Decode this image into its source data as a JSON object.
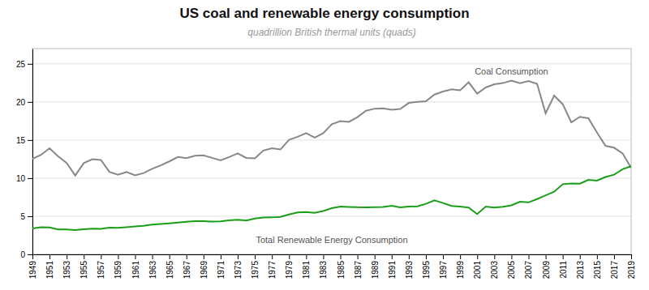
{
  "chart_data": {
    "type": "line",
    "title": "US coal and renewable energy consumption",
    "subtitle": "quadrillion British thermal units (quads)",
    "x": [
      1949,
      1950,
      1951,
      1952,
      1953,
      1954,
      1955,
      1956,
      1957,
      1958,
      1959,
      1960,
      1961,
      1962,
      1963,
      1964,
      1965,
      1966,
      1967,
      1968,
      1969,
      1970,
      1971,
      1972,
      1973,
      1974,
      1975,
      1976,
      1977,
      1978,
      1979,
      1980,
      1981,
      1982,
      1983,
      1984,
      1985,
      1986,
      1987,
      1988,
      1989,
      1990,
      1991,
      1992,
      1993,
      1994,
      1995,
      1996,
      1997,
      1998,
      1999,
      2000,
      2001,
      2002,
      2003,
      2004,
      2005,
      2006,
      2007,
      2008,
      2009,
      2010,
      2011,
      2012,
      2013,
      2014,
      2015,
      2016,
      2017,
      2018,
      2019
    ],
    "series": [
      {
        "name": "Coal Consumption",
        "color": "#888888",
        "values": [
          12.53,
          13.05,
          13.93,
          12.87,
          11.98,
          10.35,
          11.97,
          12.49,
          12.39,
          10.83,
          10.44,
          10.82,
          10.37,
          10.67,
          11.23,
          11.68,
          12.2,
          12.77,
          12.63,
          12.95,
          12.99,
          12.66,
          12.34,
          12.77,
          13.25,
          12.66,
          12.59,
          13.63,
          13.93,
          13.76,
          15.04,
          15.42,
          15.91,
          15.32,
          15.89,
          17.07,
          17.48,
          17.39,
          18.01,
          18.85,
          19.12,
          19.17,
          18.97,
          19.07,
          19.87,
          20.01,
          20.09,
          20.97,
          21.37,
          21.66,
          21.52,
          22.58,
          21.09,
          21.9,
          22.32,
          22.47,
          22.8,
          22.46,
          22.75,
          22.37,
          18.51,
          20.83,
          19.7,
          17.33,
          18.05,
          17.87,
          15.99,
          14.24,
          14.0,
          13.25,
          11.34
        ]
      },
      {
        "name": "Total Renewable Energy Consumption",
        "color": "#1a9e1a",
        "values": [
          3.4,
          3.56,
          3.53,
          3.26,
          3.28,
          3.18,
          3.29,
          3.38,
          3.35,
          3.51,
          3.48,
          3.57,
          3.68,
          3.75,
          3.9,
          3.98,
          4.07,
          4.17,
          4.27,
          4.35,
          4.35,
          4.3,
          4.32,
          4.47,
          4.54,
          4.44,
          4.71,
          4.84,
          4.85,
          4.92,
          5.24,
          5.49,
          5.55,
          5.46,
          5.68,
          6.05,
          6.28,
          6.22,
          6.18,
          6.17,
          6.2,
          6.21,
          6.37,
          6.17,
          6.27,
          6.3,
          6.63,
          7.09,
          6.74,
          6.36,
          6.27,
          6.15,
          5.28,
          6.26,
          6.15,
          6.25,
          6.44,
          6.9,
          6.82,
          7.26,
          7.74,
          8.21,
          9.21,
          9.29,
          9.28,
          9.78,
          9.67,
          10.15,
          10.46,
          11.17,
          11.57
        ]
      }
    ],
    "xlim": [
      1949,
      2019
    ],
    "xticks": [
      1949,
      1951,
      1953,
      1955,
      1957,
      1959,
      1961,
      1963,
      1965,
      1967,
      1969,
      1971,
      1973,
      1975,
      1977,
      1979,
      1981,
      1983,
      1985,
      1987,
      1989,
      1991,
      1993,
      1995,
      1997,
      1999,
      2001,
      2003,
      2005,
      2007,
      2009,
      2011,
      2013,
      2015,
      2017,
      2019
    ],
    "ylim": [
      0,
      27
    ],
    "yticks": [
      0,
      5,
      10,
      15,
      20,
      25
    ],
    "grid": true
  }
}
